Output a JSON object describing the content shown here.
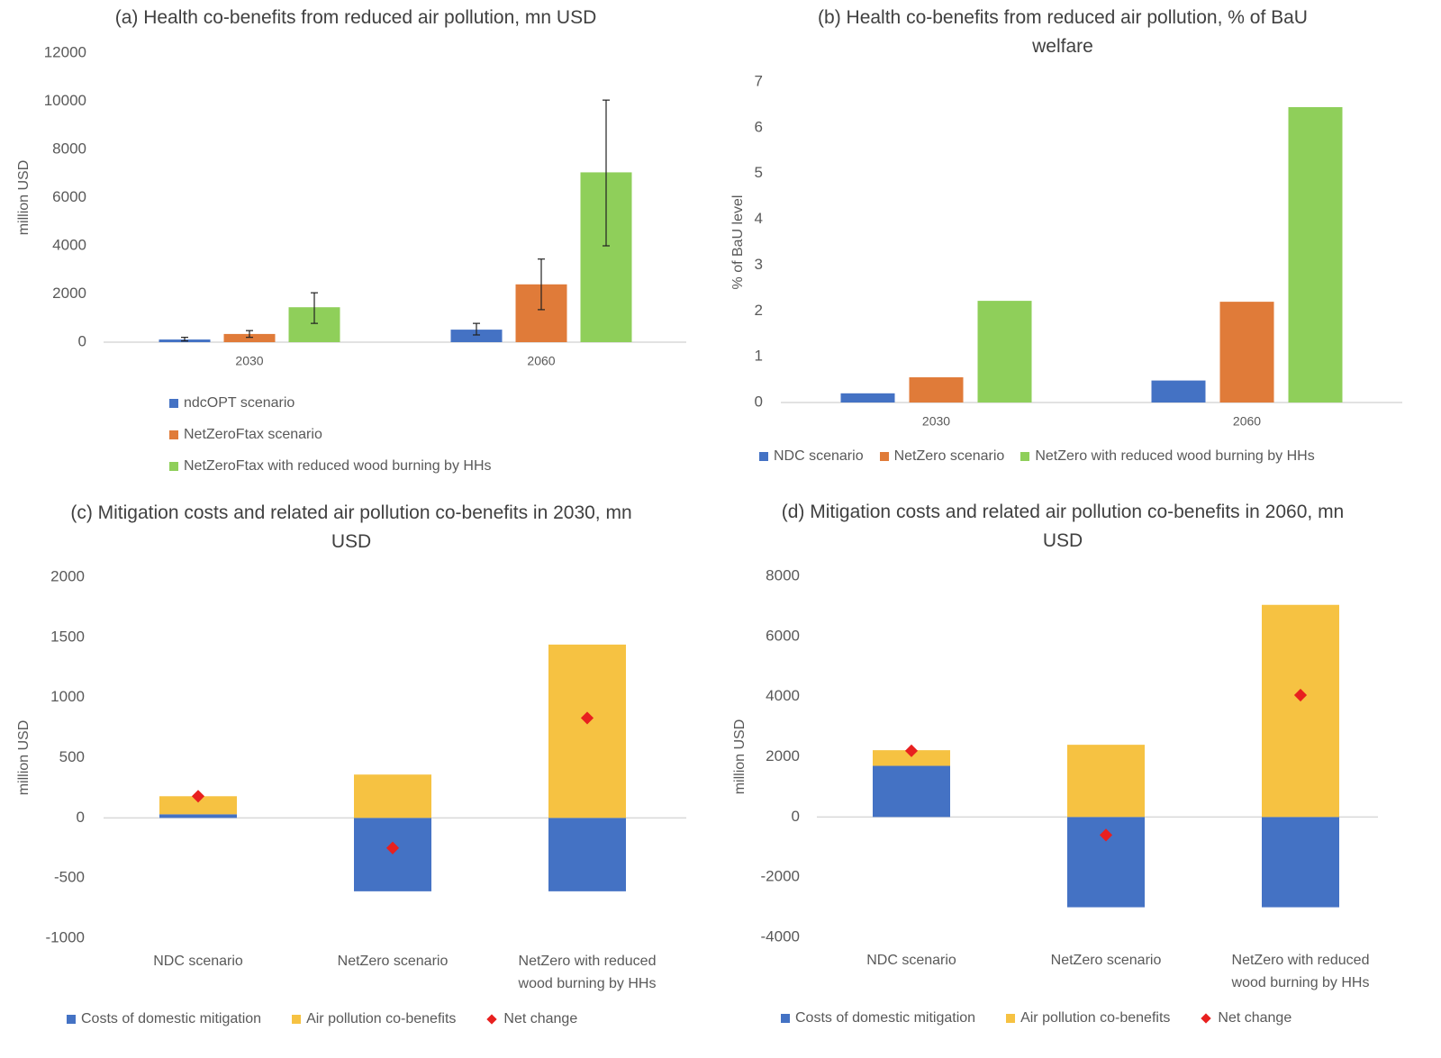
{
  "colors": {
    "blue": "#4472c4",
    "orange": "#e07b39",
    "green": "#8fcf5a",
    "yellow": "#f6c242",
    "red": "#e8201f",
    "axis": "#d9d9d9",
    "text": "#595959"
  },
  "chart_data": [
    {
      "id": "a",
      "type": "bar",
      "title": "(a) Health co-benefits from reduced air pollution, mn USD",
      "ylabel": "million USD",
      "xlabel": "",
      "ylim": [
        0,
        12000
      ],
      "yticks": [
        0,
        2000,
        4000,
        6000,
        8000,
        10000,
        12000
      ],
      "categories": [
        "2030",
        "2060"
      ],
      "series": [
        {
          "name": "ndcOPT scenario",
          "color": "#4472c4",
          "values": [
            110,
            520
          ],
          "err_low": [
            50,
            300
          ],
          "err_high": [
            200,
            780
          ]
        },
        {
          "name": "NetZeroFtax scenario",
          "color": "#e07b39",
          "values": [
            340,
            2400
          ],
          "err_low": [
            200,
            1350
          ],
          "err_high": [
            480,
            3450
          ]
        },
        {
          "name": "NetZeroFtax with reduced wood burning by HHs",
          "color": "#8fcf5a",
          "values": [
            1450,
            7050
          ],
          "err_low": [
            780,
            4000
          ],
          "err_high": [
            2050,
            10050
          ]
        }
      ],
      "legend_position": "bottom"
    },
    {
      "id": "b",
      "type": "bar",
      "title": "(b) Health co-benefits from reduced air pollution, % of BaU welfare",
      "ylabel": "% of BaU level",
      "xlabel": "",
      "ylim": [
        0,
        7
      ],
      "yticks": [
        0,
        1,
        2,
        3,
        4,
        5,
        6,
        7
      ],
      "categories": [
        "2030",
        "2060"
      ],
      "series": [
        {
          "name": "NDC scenario",
          "color": "#4472c4",
          "values": [
            0.2,
            0.48
          ]
        },
        {
          "name": "NetZero scenario",
          "color": "#e07b39",
          "values": [
            0.55,
            2.2
          ]
        },
        {
          "name": "NetZero with reduced wood burning by HHs",
          "color": "#8fcf5a",
          "values": [
            2.22,
            6.45
          ]
        }
      ],
      "legend_position": "bottom"
    },
    {
      "id": "c",
      "type": "bar",
      "title": "(c) Mitigation costs and related air pollution co-benefits in 2030, mn USD",
      "ylabel": "million USD",
      "xlabel": "",
      "ylim": [
        -1000,
        2000
      ],
      "yticks": [
        -1000,
        -500,
        0,
        500,
        1000,
        1500,
        2000
      ],
      "categories": [
        "NDC scenario",
        "NetZero scenario",
        "NetZero with reduced wood burning by HHs"
      ],
      "series": [
        {
          "name": "Costs of domestic mitigation",
          "color": "#4472c4",
          "values": [
            30,
            -610,
            -610
          ]
        },
        {
          "name": "Air pollution co-benefits",
          "color": "#f6c242",
          "values": [
            150,
            360,
            1440
          ]
        },
        {
          "name": "Net change",
          "color": "#e8201f",
          "marker": "diamond",
          "values": [
            180,
            -250,
            830
          ]
        }
      ],
      "legend_position": "bottom"
    },
    {
      "id": "d",
      "type": "bar",
      "title": "(d) Mitigation costs and related air pollution co-benefits in 2060, mn USD",
      "ylabel": "million USD",
      "xlabel": "",
      "ylim": [
        -4000,
        8000
      ],
      "yticks": [
        -4000,
        -2000,
        0,
        2000,
        4000,
        6000,
        8000
      ],
      "categories": [
        "NDC scenario",
        "NetZero scenario",
        "NetZero with reduced wood burning by HHs"
      ],
      "series": [
        {
          "name": "Costs of domestic mitigation",
          "color": "#4472c4",
          "values": [
            1700,
            -3000,
            -3000
          ]
        },
        {
          "name": "Air pollution co-benefits",
          "color": "#f6c242",
          "values": [
            520,
            2400,
            7050
          ]
        },
        {
          "name": "Net change",
          "color": "#e8201f",
          "marker": "diamond",
          "values": [
            2200,
            -600,
            4050
          ]
        }
      ],
      "legend_position": "bottom"
    }
  ]
}
